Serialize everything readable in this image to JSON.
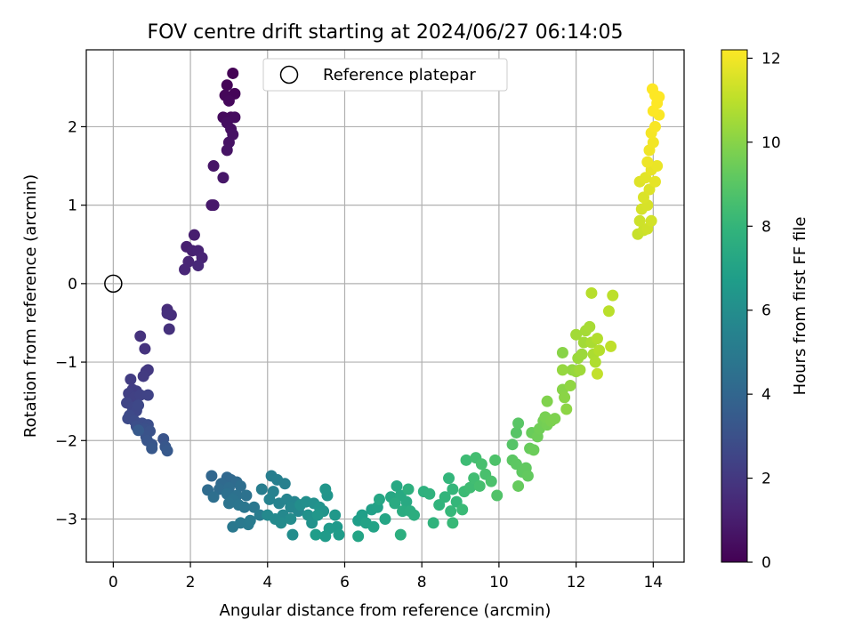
{
  "chart_data": {
    "type": "scatter",
    "title": "FOV centre drift starting at 2024/06/27 06:14:05",
    "xlabel": "Angular distance from reference (arcmin)",
    "ylabel": "Rotation from reference (arcmin)",
    "xlim": [
      -0.7,
      14.8
    ],
    "ylim": [
      -3.55,
      2.98
    ],
    "xticks": [
      0,
      2,
      4,
      6,
      8,
      10,
      12,
      14
    ],
    "yticks": [
      -3,
      -2,
      -1,
      0,
      1,
      2
    ],
    "grid": true,
    "legend": {
      "placement": "top-center",
      "entries": [
        "Reference platepar"
      ]
    },
    "reference_point": {
      "x": 0,
      "y": 0
    },
    "colorbar": {
      "label": "Hours from first FF file",
      "min": 0,
      "max": 12.2,
      "ticks": [
        0,
        2,
        4,
        6,
        8,
        10,
        12
      ],
      "colormap": "viridis"
    },
    "points": [
      [
        3.1,
        2.68,
        0.05
      ],
      [
        2.95,
        2.53,
        0.1
      ],
      [
        3.15,
        2.42,
        0.15
      ],
      [
        2.9,
        2.4,
        0.2
      ],
      [
        3.0,
        2.33,
        0.25
      ],
      [
        3.05,
        2.12,
        0.3
      ],
      [
        2.85,
        2.12,
        0.35
      ],
      [
        3.15,
        2.12,
        0.4
      ],
      [
        2.95,
        2.05,
        0.45
      ],
      [
        3.05,
        1.97,
        0.5
      ],
      [
        3.1,
        1.9,
        0.55
      ],
      [
        3.0,
        1.8,
        0.6
      ],
      [
        2.95,
        1.7,
        0.65
      ],
      [
        2.6,
        1.5,
        0.7
      ],
      [
        2.85,
        1.35,
        0.75
      ],
      [
        2.55,
        1.0,
        0.8
      ],
      [
        2.6,
        1.0,
        0.85
      ],
      [
        2.1,
        0.62,
        1.0
      ],
      [
        1.9,
        0.47,
        1.05
      ],
      [
        2.05,
        0.42,
        1.1
      ],
      [
        2.2,
        0.42,
        1.15
      ],
      [
        2.3,
        0.33,
        1.2
      ],
      [
        1.95,
        0.28,
        1.25
      ],
      [
        1.85,
        0.18,
        1.3
      ],
      [
        2.2,
        0.23,
        1.35
      ],
      [
        1.4,
        -0.33,
        1.55
      ],
      [
        1.5,
        -0.4,
        1.6
      ],
      [
        1.4,
        -0.38,
        1.65
      ],
      [
        1.45,
        -0.58,
        1.7
      ],
      [
        0.7,
        -0.67,
        1.75
      ],
      [
        0.82,
        -0.83,
        1.8
      ],
      [
        0.85,
        -1.12,
        2.0
      ],
      [
        0.9,
        -1.1,
        2.05
      ],
      [
        0.78,
        -1.18,
        2.1
      ],
      [
        0.45,
        -1.22,
        2.15
      ],
      [
        0.5,
        -1.35,
        2.2
      ],
      [
        0.6,
        -1.37,
        2.25
      ],
      [
        0.4,
        -1.4,
        2.3
      ],
      [
        0.55,
        -1.45,
        2.35
      ],
      [
        0.7,
        -1.42,
        2.4
      ],
      [
        0.9,
        -1.42,
        2.45
      ],
      [
        0.35,
        -1.52,
        2.5
      ],
      [
        0.5,
        -1.58,
        2.55
      ],
      [
        0.6,
        -1.62,
        2.6
      ],
      [
        0.65,
        -1.55,
        2.65
      ],
      [
        0.42,
        -1.68,
        2.7
      ],
      [
        0.38,
        -1.72,
        2.75
      ],
      [
        0.55,
        -1.75,
        2.8
      ],
      [
        0.75,
        -1.78,
        2.85
      ],
      [
        0.9,
        -1.8,
        2.9
      ],
      [
        0.6,
        -1.82,
        2.95
      ],
      [
        0.8,
        -1.85,
        3.0
      ],
      [
        0.95,
        -1.88,
        3.05
      ],
      [
        0.85,
        -1.95,
        3.1
      ],
      [
        1.3,
        -1.98,
        3.15
      ],
      [
        0.88,
        -2.0,
        3.2
      ],
      [
        1.0,
        -2.05,
        3.25
      ],
      [
        1.35,
        -2.08,
        3.3
      ],
      [
        1.0,
        -2.1,
        3.35
      ],
      [
        1.4,
        -2.13,
        3.4
      ],
      [
        0.65,
        -1.87,
        3.45
      ],
      [
        2.55,
        -2.45,
        4.0
      ],
      [
        2.95,
        -2.47,
        4.05
      ],
      [
        3.05,
        -2.5,
        4.1
      ],
      [
        2.8,
        -2.55,
        4.15
      ],
      [
        3.2,
        -2.53,
        4.2
      ],
      [
        2.45,
        -2.63,
        4.25
      ],
      [
        2.75,
        -2.62,
        4.3
      ],
      [
        3.0,
        -2.6,
        4.35
      ],
      [
        3.3,
        -2.58,
        4.4
      ],
      [
        2.6,
        -2.72,
        4.45
      ],
      [
        2.95,
        -2.68,
        4.5
      ],
      [
        3.2,
        -2.7,
        4.55
      ],
      [
        3.45,
        -2.7,
        4.6
      ],
      [
        3.1,
        -2.75,
        4.65
      ],
      [
        3.0,
        -2.8,
        4.7
      ],
      [
        3.25,
        -2.82,
        4.75
      ],
      [
        3.4,
        -2.85,
        4.8
      ],
      [
        3.65,
        -2.85,
        4.85
      ],
      [
        3.1,
        -3.1,
        4.9
      ],
      [
        3.3,
        -3.05,
        4.95
      ],
      [
        3.5,
        -3.07,
        5.0
      ],
      [
        3.55,
        -3.02,
        5.05
      ],
      [
        3.8,
        -2.95,
        5.1
      ],
      [
        3.85,
        -2.62,
        5.15
      ],
      [
        4.1,
        -2.45,
        5.2
      ],
      [
        4.25,
        -2.5,
        5.25
      ],
      [
        4.45,
        -2.55,
        5.3
      ],
      [
        4.15,
        -2.65,
        5.35
      ],
      [
        4.05,
        -2.75,
        5.4
      ],
      [
        4.3,
        -2.8,
        5.45
      ],
      [
        4.5,
        -2.75,
        5.5
      ],
      [
        4.7,
        -2.78,
        5.55
      ],
      [
        4.6,
        -2.85,
        5.6
      ],
      [
        4.8,
        -2.9,
        5.65
      ],
      [
        4.4,
        -2.95,
        5.7
      ],
      [
        4.0,
        -2.95,
        5.75
      ],
      [
        4.2,
        -3.0,
        5.8
      ],
      [
        4.35,
        -3.05,
        5.85
      ],
      [
        4.6,
        -3.0,
        5.9
      ],
      [
        4.65,
        -3.2,
        5.95
      ],
      [
        4.85,
        -2.82,
        6.0
      ],
      [
        5.0,
        -2.78,
        6.05
      ],
      [
        5.2,
        -2.8,
        6.1
      ],
      [
        5.05,
        -2.95,
        6.15
      ],
      [
        5.15,
        -3.05,
        6.2
      ],
      [
        5.35,
        -2.85,
        6.25
      ],
      [
        5.45,
        -2.9,
        6.3
      ],
      [
        5.55,
        -2.7,
        6.35
      ],
      [
        5.5,
        -2.62,
        6.4
      ],
      [
        5.3,
        -2.95,
        6.45
      ],
      [
        5.75,
        -2.95,
        6.5
      ],
      [
        5.8,
        -3.1,
        6.55
      ],
      [
        5.6,
        -3.12,
        6.6
      ],
      [
        5.5,
        -3.22,
        6.65
      ],
      [
        5.85,
        -3.2,
        6.7
      ],
      [
        5.25,
        -3.2,
        6.75
      ],
      [
        6.35,
        -3.02,
        6.8
      ],
      [
        6.45,
        -2.95,
        6.85
      ],
      [
        6.7,
        -2.88,
        6.9
      ],
      [
        6.85,
        -2.85,
        6.95
      ],
      [
        6.55,
        -3.05,
        7.0
      ],
      [
        6.75,
        -3.1,
        7.05
      ],
      [
        6.35,
        -3.22,
        7.1
      ],
      [
        7.05,
        -3.0,
        7.15
      ],
      [
        6.9,
        -2.75,
        7.2
      ],
      [
        7.2,
        -2.72,
        7.25
      ],
      [
        7.35,
        -2.58,
        7.3
      ],
      [
        7.45,
        -2.7,
        7.35
      ],
      [
        7.6,
        -2.78,
        7.4
      ],
      [
        7.3,
        -2.8,
        7.45
      ],
      [
        7.5,
        -2.9,
        7.5
      ],
      [
        7.7,
        -2.9,
        7.55
      ],
      [
        7.8,
        -2.95,
        7.6
      ],
      [
        7.45,
        -3.2,
        7.65
      ],
      [
        7.65,
        -2.62,
        7.7
      ],
      [
        8.05,
        -2.65,
        7.75
      ],
      [
        8.2,
        -2.68,
        7.8
      ],
      [
        8.3,
        -3.05,
        7.85
      ],
      [
        8.45,
        -2.82,
        7.9
      ],
      [
        8.6,
        -2.72,
        7.95
      ],
      [
        8.7,
        -2.48,
        8.0
      ],
      [
        8.8,
        -2.62,
        8.05
      ],
      [
        8.9,
        -2.78,
        8.1
      ],
      [
        8.75,
        -2.9,
        8.15
      ],
      [
        8.8,
        -3.05,
        8.2
      ],
      [
        9.05,
        -2.88,
        8.25
      ],
      [
        9.1,
        -2.65,
        8.3
      ],
      [
        9.15,
        -2.25,
        8.35
      ],
      [
        9.25,
        -2.6,
        8.4
      ],
      [
        9.35,
        -2.48,
        8.45
      ],
      [
        9.4,
        -2.22,
        8.5
      ],
      [
        9.5,
        -2.58,
        8.55
      ],
      [
        9.55,
        -2.3,
        8.6
      ],
      [
        9.65,
        -2.43,
        8.65
      ],
      [
        9.8,
        -2.52,
        8.7
      ],
      [
        9.9,
        -2.25,
        8.75
      ],
      [
        9.95,
        -2.7,
        8.8
      ],
      [
        10.35,
        -2.05,
        8.9
      ],
      [
        10.45,
        -1.9,
        8.95
      ],
      [
        10.5,
        -1.78,
        9.0
      ],
      [
        10.35,
        -2.25,
        9.05
      ],
      [
        10.45,
        -2.3,
        9.1
      ],
      [
        10.6,
        -2.4,
        9.15
      ],
      [
        10.7,
        -2.35,
        9.2
      ],
      [
        10.75,
        -2.45,
        9.25
      ],
      [
        10.5,
        -2.58,
        9.3
      ],
      [
        10.8,
        -2.1,
        9.35
      ],
      [
        10.85,
        -1.9,
        9.4
      ],
      [
        10.9,
        -2.12,
        9.45
      ],
      [
        11.0,
        -1.95,
        9.5
      ],
      [
        11.05,
        -1.85,
        9.55
      ],
      [
        11.15,
        -1.75,
        9.6
      ],
      [
        11.25,
        -1.8,
        9.65
      ],
      [
        11.2,
        -1.7,
        9.7
      ],
      [
        11.35,
        -1.75,
        9.75
      ],
      [
        11.45,
        -1.72,
        9.8
      ],
      [
        11.25,
        -1.5,
        9.85
      ],
      [
        11.65,
        -1.35,
        10.0
      ],
      [
        11.7,
        -1.45,
        10.05
      ],
      [
        11.75,
        -1.6,
        10.1
      ],
      [
        11.85,
        -1.3,
        10.15
      ],
      [
        11.9,
        -1.1,
        10.2
      ],
      [
        11.65,
        -1.1,
        10.25
      ],
      [
        12.0,
        -1.12,
        10.3
      ],
      [
        12.05,
        -0.95,
        10.35
      ],
      [
        12.15,
        -0.9,
        10.4
      ],
      [
        12.1,
        -1.1,
        10.45
      ],
      [
        12.2,
        -0.75,
        10.5
      ],
      [
        12.25,
        -0.6,
        10.55
      ],
      [
        12.35,
        -0.55,
        10.6
      ],
      [
        12.4,
        -0.75,
        10.65
      ],
      [
        12.45,
        -0.9,
        10.7
      ],
      [
        12.5,
        -1.0,
        10.75
      ],
      [
        12.55,
        -0.7,
        10.8
      ],
      [
        12.6,
        -0.85,
        10.85
      ],
      [
        12.4,
        -0.12,
        10.9
      ],
      [
        12.85,
        -0.35,
        10.95
      ],
      [
        12.95,
        -0.15,
        11.0
      ],
      [
        12.9,
        -0.8,
        11.05
      ],
      [
        12.55,
        -1.15,
        11.1
      ],
      [
        11.65,
        -0.88,
        10.0
      ],
      [
        12.0,
        -0.65,
        10.5
      ],
      [
        13.6,
        0.63,
        11.2
      ],
      [
        13.75,
        0.68,
        11.25
      ],
      [
        13.65,
        0.8,
        11.3
      ],
      [
        13.85,
        0.7,
        11.35
      ],
      [
        13.95,
        0.8,
        11.4
      ],
      [
        13.7,
        0.95,
        11.45
      ],
      [
        13.85,
        1.0,
        11.5
      ],
      [
        13.75,
        1.1,
        11.55
      ],
      [
        13.9,
        1.2,
        11.6
      ],
      [
        13.65,
        1.3,
        11.65
      ],
      [
        13.8,
        1.35,
        11.7
      ],
      [
        14.05,
        1.3,
        11.75
      ],
      [
        13.95,
        1.45,
        11.8
      ],
      [
        14.1,
        1.5,
        11.85
      ],
      [
        13.85,
        1.55,
        11.9
      ],
      [
        13.9,
        1.7,
        11.95
      ],
      [
        14.0,
        1.8,
        12.0
      ],
      [
        13.95,
        1.92,
        12.05
      ],
      [
        14.05,
        2.0,
        12.1
      ],
      [
        14.15,
        2.15,
        12.15
      ],
      [
        14.0,
        2.2,
        12.18
      ],
      [
        14.1,
        2.3,
        12.2
      ],
      [
        14.05,
        2.4,
        12.2
      ],
      [
        13.98,
        2.48,
        12.2
      ],
      [
        14.15,
        2.38,
        12.2
      ]
    ]
  }
}
